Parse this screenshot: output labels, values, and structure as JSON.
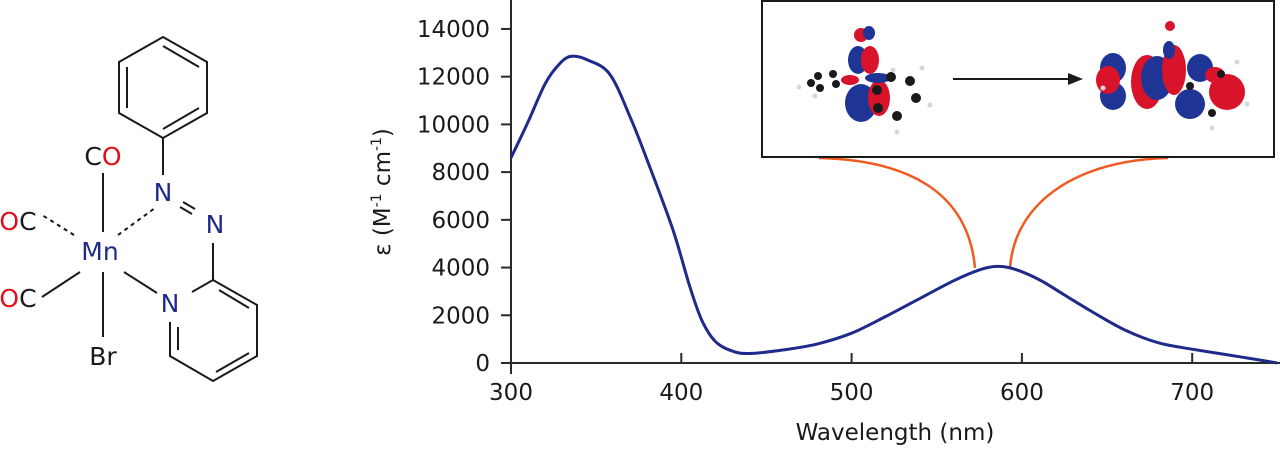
{
  "molecule": {
    "metal": "Mn",
    "ligands": {
      "top": {
        "c": "C",
        "o": "O"
      },
      "left_upper": {
        "o": "O",
        "c": "C"
      },
      "left_lower": {
        "o": "O",
        "c": "C"
      },
      "bottom": "Br",
      "azo_n1": "N",
      "azo_n2": "N",
      "pyridine_n": "N"
    },
    "colors": {
      "metal": "#1f2a8a",
      "nitrogen": "#1f2a8a",
      "oxygen": "#e0101a",
      "carbon": "#1a1a1a",
      "bond": "#1a1a1a"
    }
  },
  "inset": {
    "description": "Molecular orbital transition diagram",
    "arrow": "right",
    "lobe_colors": {
      "positive": "#d8132a",
      "negative": "#1e3596"
    },
    "atom_color": "#1a1a1a",
    "hydrogen_color": "#e8e8e8",
    "connector_color": "#f05a22"
  },
  "chart_data": {
    "type": "line",
    "title": "",
    "xlabel": "Wavelength (nm)",
    "ylabel": "ε (M⁻¹ cm⁻¹)",
    "xlim": [
      300,
      750
    ],
    "ylim": [
      0,
      14000
    ],
    "xticks": [
      300,
      400,
      500,
      600,
      700
    ],
    "yticks": [
      0,
      2000,
      4000,
      6000,
      8000,
      10000,
      12000,
      14000
    ],
    "grid": false,
    "legend": null,
    "series": [
      {
        "name": "absorption spectrum",
        "color": "#1f2a8a",
        "x": [
          300,
          310,
          320,
          328,
          335,
          345,
          358,
          370,
          380,
          395,
          405,
          412,
          420,
          430,
          440,
          460,
          480,
          500,
          520,
          540,
          560,
          575,
          585,
          595,
          610,
          625,
          640,
          660,
          680,
          700,
          720,
          740,
          750
        ],
        "y": [
          8600,
          10100,
          11700,
          12500,
          12850,
          12700,
          12100,
          10300,
          8500,
          5600,
          3200,
          1800,
          900,
          500,
          400,
          550,
          800,
          1250,
          1950,
          2700,
          3450,
          3900,
          4050,
          3950,
          3500,
          2850,
          2200,
          1400,
          850,
          580,
          350,
          120,
          0
        ]
      }
    ],
    "annotations": [
      {
        "type": "inset_connector",
        "from_x": 575,
        "to": "inset-left",
        "color": "#f05a22"
      },
      {
        "type": "inset_connector",
        "from_x": 593,
        "to": "inset-right",
        "color": "#f05a22"
      },
      {
        "type": "inset_image",
        "text": "HOMO → LUMO orbital transition"
      }
    ]
  },
  "axis_labels": {
    "x": "Wavelength (nm)",
    "y_prefix": "ε (M",
    "y_sup1": "-1",
    "y_mid": " cm",
    "y_sup2": "-1",
    "y_suffix": ")"
  },
  "tick_labels": {
    "x": [
      "300",
      "400",
      "500",
      "600",
      "700"
    ],
    "y": [
      "0",
      "2000",
      "4000",
      "6000",
      "8000",
      "10000",
      "12000",
      "14000"
    ]
  }
}
